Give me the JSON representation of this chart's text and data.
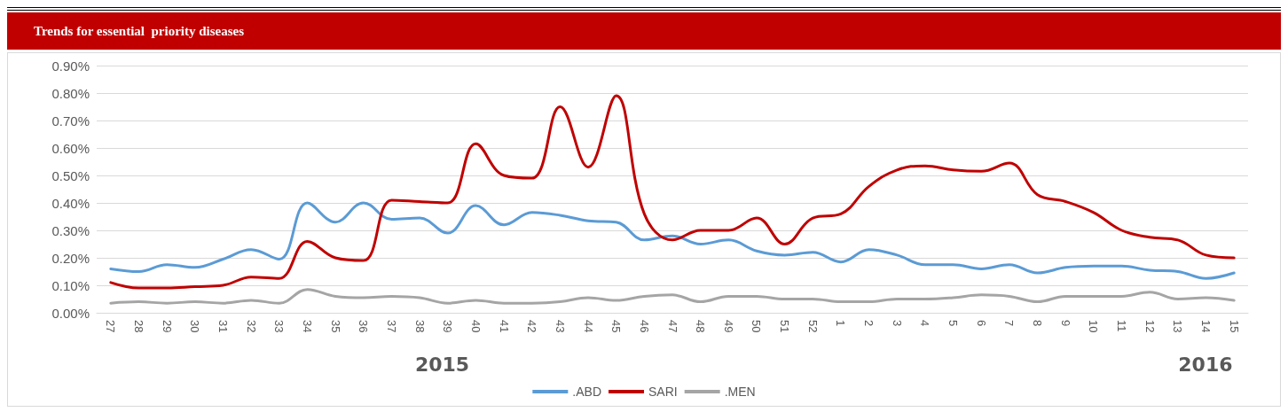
{
  "chart_data": {
    "type": "line",
    "title": "Trends for essential  priority diseases",
    "categories": [
      "27",
      "28",
      "29",
      "30",
      "31",
      "32",
      "33",
      "34",
      "35",
      "36",
      "37",
      "38",
      "39",
      "40",
      "41",
      "42",
      "43",
      "44",
      "45",
      "46",
      "47",
      "48",
      "49",
      "50",
      "51",
      "52",
      "1",
      "2",
      "3",
      "4",
      "5",
      "6",
      "7",
      "8",
      "9",
      "10",
      "11",
      "12",
      "13",
      "14",
      "15"
    ],
    "series": [
      {
        "name": ".ABD",
        "color": "#5b9bd5",
        "values": [
          0.16,
          0.15,
          0.175,
          0.165,
          0.195,
          0.23,
          0.195,
          0.4,
          0.33,
          0.4,
          0.34,
          0.345,
          0.29,
          0.39,
          0.32,
          0.365,
          0.355,
          0.335,
          0.33,
          0.265,
          0.28,
          0.25,
          0.265,
          0.225,
          0.21,
          0.22,
          0.185,
          0.23,
          0.21,
          0.175,
          0.175,
          0.16,
          0.175,
          0.145,
          0.165,
          0.17,
          0.17,
          0.155,
          0.15,
          0.125,
          0.145
        ]
      },
      {
        "name": "SARI",
        "color": "#c00000",
        "values": [
          0.11,
          0.09,
          0.09,
          0.095,
          0.1,
          0.13,
          0.125,
          0.26,
          0.2,
          0.19,
          0.41,
          0.405,
          0.4,
          0.615,
          0.5,
          0.49,
          0.75,
          0.53,
          0.79,
          0.36,
          0.265,
          0.3,
          0.3,
          0.345,
          0.25,
          0.345,
          0.36,
          0.46,
          0.52,
          0.535,
          0.52,
          0.515,
          0.545,
          0.43,
          0.405,
          0.365,
          0.3,
          0.275,
          0.265,
          0.21,
          0.2
        ]
      },
      {
        "name": ".MEN",
        "color": "#a5a5a5",
        "values": [
          0.035,
          0.04,
          0.035,
          0.04,
          0.035,
          0.045,
          0.035,
          0.085,
          0.06,
          0.055,
          0.06,
          0.055,
          0.035,
          0.045,
          0.035,
          0.035,
          0.04,
          0.055,
          0.045,
          0.06,
          0.065,
          0.04,
          0.06,
          0.06,
          0.05,
          0.05,
          0.04,
          0.04,
          0.05,
          0.05,
          0.055,
          0.065,
          0.06,
          0.04,
          0.06,
          0.06,
          0.06,
          0.075,
          0.05,
          0.055,
          0.045
        ]
      }
    ],
    "ylim": [
      0,
      0.9
    ],
    "yticks": [
      {
        "value": 0,
        "label": "0.00%"
      },
      {
        "value": 0.1,
        "label": "0.10%"
      },
      {
        "value": 0.2,
        "label": "0.20%"
      },
      {
        "value": 0.3,
        "label": "0.30%"
      },
      {
        "value": 0.4,
        "label": "0.40%"
      },
      {
        "value": 0.5,
        "label": "0.50%"
      },
      {
        "value": 0.6,
        "label": "0.60%"
      },
      {
        "value": 0.7,
        "label": "0.70%"
      },
      {
        "value": 0.8,
        "label": "0.80%"
      },
      {
        "value": 0.9,
        "label": "0.90%"
      }
    ],
    "grid": "y",
    "legend": "bottom",
    "marker": "none",
    "line_style": "solid",
    "annotations": [
      "2015",
      "2016"
    ]
  }
}
